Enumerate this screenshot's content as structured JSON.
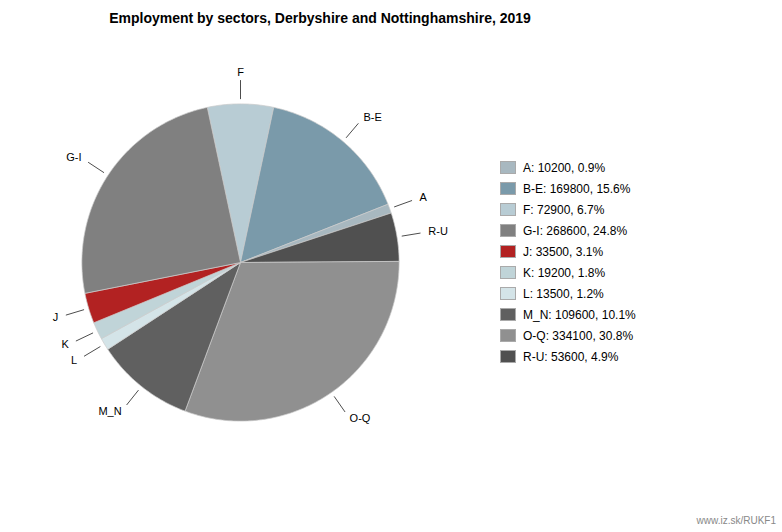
{
  "chart_data": {
    "type": "pie",
    "title": "Employment by sectors, Derbyshire and Nottinghamshire, 2019",
    "categories": [
      "F",
      "B-E",
      "A",
      "R-U",
      "O-Q",
      "M_N",
      "L",
      "K",
      "J",
      "G-I"
    ],
    "values": [
      72900,
      169800,
      10200,
      53600,
      334100,
      109600,
      13500,
      19200,
      33500,
      268600
    ],
    "colors": [
      "#b8ccd4",
      "#7a9aaa",
      "#a8b8c0",
      "#505050",
      "#909090",
      "#606060",
      "#d4e4e8",
      "#c0d4d8",
      "#b22222",
      "#808080"
    ],
    "legend": "right",
    "legend_entries": [
      {
        "label": "A: 10200, 0.9%",
        "color": "#a8b8c0"
      },
      {
        "label": "B-E: 169800, 15.6%",
        "color": "#7a9aaa"
      },
      {
        "label": "F: 72900, 6.7%",
        "color": "#b8ccd4"
      },
      {
        "label": "G-I: 268600, 24.8%",
        "color": "#808080"
      },
      {
        "label": "J: 33500, 3.1%",
        "color": "#b22222"
      },
      {
        "label": "K: 19200, 1.8%",
        "color": "#c0d4d8"
      },
      {
        "label": "L: 13500, 1.2%",
        "color": "#d4e4e8"
      },
      {
        "label": "M_N: 109600, 10.1%",
        "color": "#606060"
      },
      {
        "label": "O-Q: 334100, 30.8%",
        "color": "#909090"
      },
      {
        "label": "R-U: 53600, 4.9%",
        "color": "#505050"
      }
    ],
    "annotations": [
      "www.iz.sk/RUKF1"
    ]
  }
}
